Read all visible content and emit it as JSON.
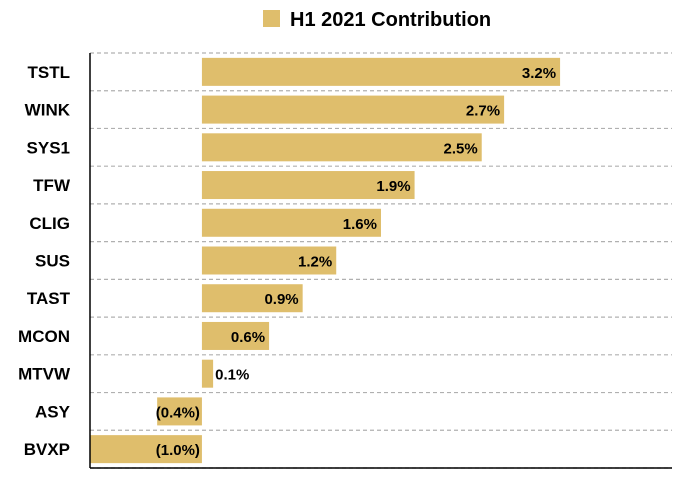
{
  "chart_data": {
    "type": "bar",
    "orientation": "horizontal",
    "title": "",
    "xlabel": "",
    "ylabel": "",
    "categories": [
      "TSTL",
      "WINK",
      "SYS1",
      "TFW",
      "CLIG",
      "SUS",
      "TAST",
      "MCON",
      "MTVW",
      "ASY",
      "BVXP"
    ],
    "series": [
      {
        "name": "H1 2021 Contribution",
        "color": "#dfbe6c",
        "values": [
          3.2,
          2.7,
          2.5,
          1.9,
          1.6,
          1.2,
          0.9,
          0.6,
          0.1,
          -0.4,
          -1.0
        ],
        "labels": [
          "3.2%",
          "2.7%",
          "2.5%",
          "1.9%",
          "1.6%",
          "1.2%",
          "0.9%",
          "0.6%",
          "0.1%",
          "(0.4%)",
          "(1.0%)"
        ]
      }
    ],
    "xlim": [
      -1.0,
      4.2
    ],
    "grid": true,
    "legend_position": "top"
  }
}
